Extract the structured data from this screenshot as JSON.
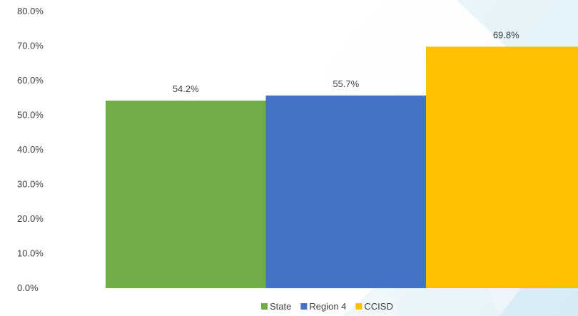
{
  "chart_data": {
    "type": "bar",
    "title": "",
    "xlabel": "",
    "ylabel": "",
    "ylim": [
      0,
      80
    ],
    "yticks": [
      "0.0%",
      "10.0%",
      "20.0%",
      "30.0%",
      "40.0%",
      "50.0%",
      "60.0%",
      "70.0%",
      "80.0%"
    ],
    "grid": false,
    "legend_position": "bottom",
    "series": [
      {
        "name": "State",
        "value": 54.2,
        "label": "54.2%",
        "color": "#70AD47"
      },
      {
        "name": "Region 4",
        "value": 55.7,
        "label": "55.7%",
        "color": "#4472C4"
      },
      {
        "name": "CCISD",
        "value": 69.8,
        "label": "69.8%",
        "color": "#FFC000"
      }
    ]
  }
}
